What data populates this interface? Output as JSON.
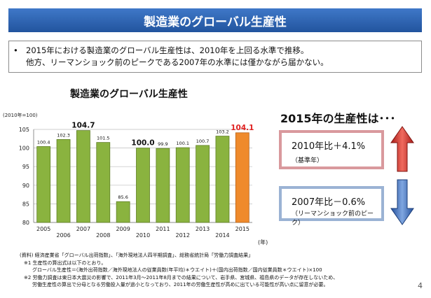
{
  "header": {
    "title": "製造業のグローバル生産性"
  },
  "summary": {
    "bullet": "•",
    "line1": "2015年における製造業のグローバル生産性は、2010年を上回る水準で推移。",
    "line2": "他方、リーマンショック前のピークである2007年の水準には僅かながら届かない。"
  },
  "chart_data": {
    "type": "bar",
    "title": "製造業のグローバル生産性",
    "index_label": "(2010年=100)",
    "x_unit_label": "(年)",
    "categories": [
      "2005",
      "2006",
      "2007",
      "2008",
      "2009",
      "2010",
      "2011",
      "2012",
      "2013",
      "2014",
      "2015"
    ],
    "values": [
      100.4,
      102.3,
      104.7,
      101.5,
      85.6,
      100.0,
      99.9,
      100.1,
      100.7,
      103.2,
      104.1
    ],
    "value_labels": [
      "100.4",
      "102.3",
      "104.7",
      "101.5",
      "85.6",
      "100.0",
      "99.9",
      "100.1",
      "100.7",
      "103.2",
      "104.1"
    ],
    "highlight_labels": [
      "2007",
      "2010",
      "2015"
    ],
    "ylim": [
      80,
      105
    ],
    "yticks": [
      "80",
      "85",
      "90",
      "95",
      "100",
      "105"
    ],
    "grid": true,
    "colors": {
      "bar": "#8ab33f",
      "bar_edge": "#5f7f26",
      "highlight_bar": "#ef8a2c",
      "highlight_text": "#e02020"
    }
  },
  "comparison": {
    "headline": "2015年の生産性は･･･",
    "up": {
      "main": "2010年比＋4.1%",
      "sub": "（基準年）",
      "arrow": "up-arrow-icon"
    },
    "down": {
      "main": "2007年比－0.6%",
      "sub": "（リーマンショック前のピーク）",
      "arrow": "down-arrow-icon"
    },
    "colors": {
      "up": "#d9302b",
      "down": "#3d6fc4"
    }
  },
  "notes": {
    "source": "(資料) 経済産業省「グローバル出荷指数」、「海外現地法人四半期調査」、総務省統計局「労働力調査結果」",
    "n1": "※1 生産性の算出式は以下のとおり。",
    "n1b": "グローバル生産性＝(海外出荷指数／海外現地法人の従業員数(年平均)＊ウエイト)＋(国内出荷指数／国内従業員数＊ウエイト)×100",
    "n2": "※2 労働力調査は東日本大震災の影響で、2011年3月～2011年8月までの結果について、岩手県、宮城県、福島県のデータが存在しないため、",
    "n2b": "労働生産性の算出で分母となる労働投入量が過小となっており、2011年の労働生産性が高めに出ている可能性が高い点に留意が必要。"
  },
  "page_number": "4"
}
